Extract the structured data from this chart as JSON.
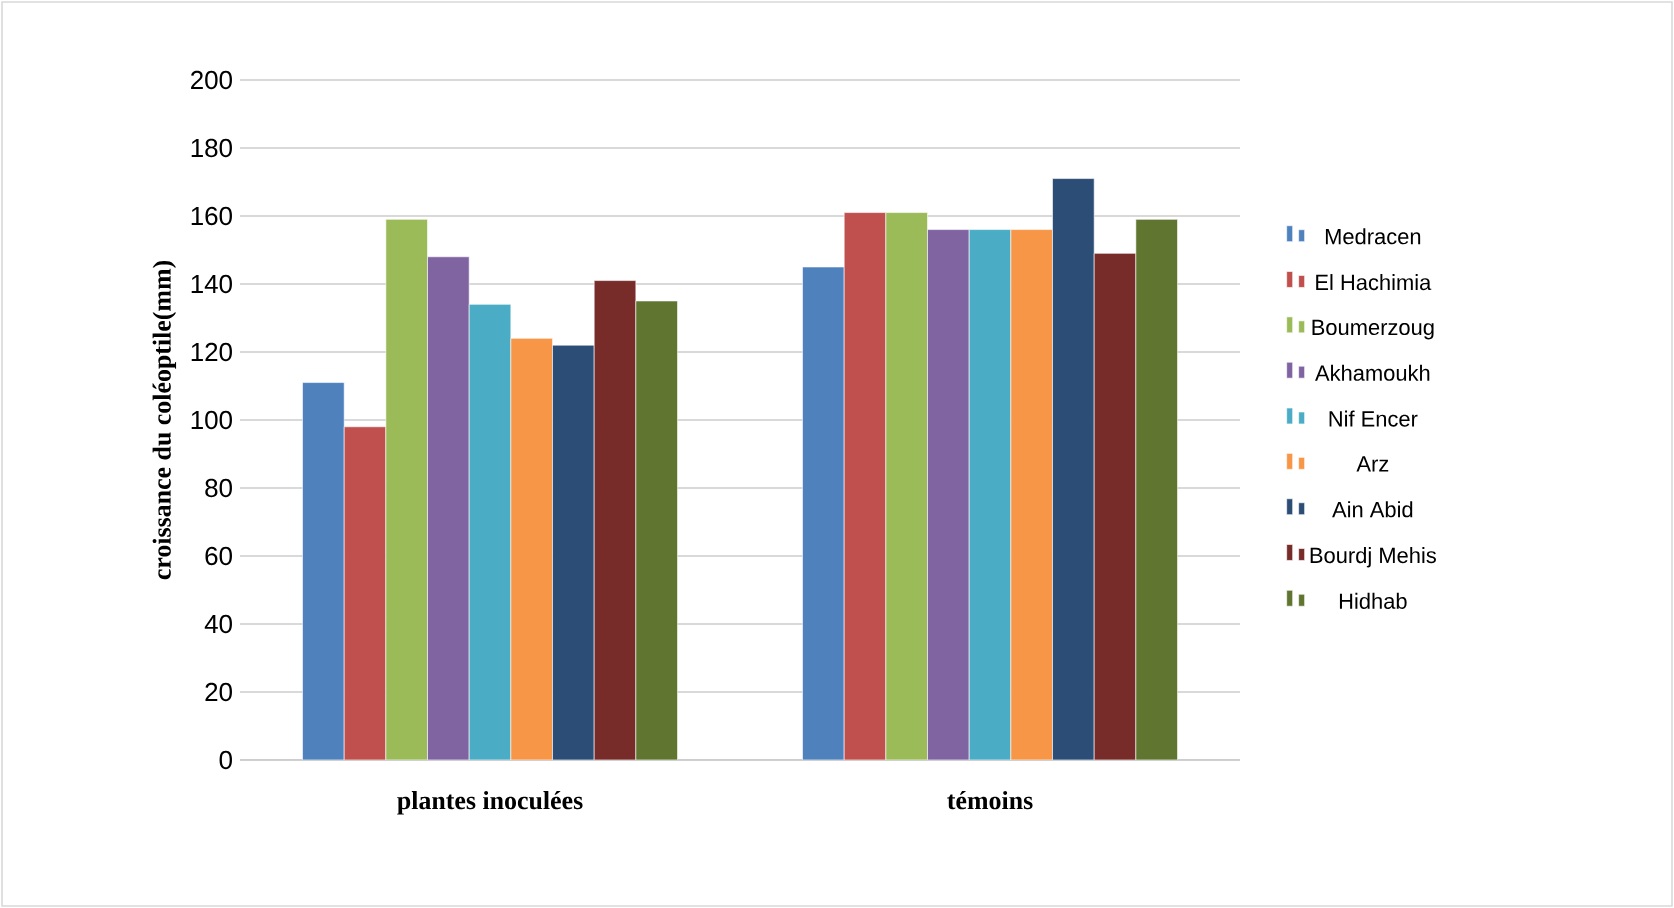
{
  "chart_data": {
    "type": "bar",
    "ylabel": "croissance du coléoptile(mm)",
    "categories": [
      "plantes inoculées",
      "témoins"
    ],
    "series": [
      {
        "name": "Medracen",
        "color": "#4f81bd",
        "values": [
          111,
          145
        ]
      },
      {
        "name": "El Hachimia",
        "color": "#c0504d",
        "values": [
          98,
          161
        ]
      },
      {
        "name": "Boumerzoug",
        "color": "#9bbb59",
        "values": [
          159,
          161
        ]
      },
      {
        "name": "Akhamoukh",
        "color": "#8064a2",
        "values": [
          148,
          156
        ]
      },
      {
        "name": "Nif Encer",
        "color": "#4bacc6",
        "values": [
          134,
          156
        ]
      },
      {
        "name": "Arz",
        "color": "#f79646",
        "values": [
          124,
          156
        ]
      },
      {
        "name": "Ain Abid",
        "color": "#2c4d75",
        "values": [
          122,
          171
        ]
      },
      {
        "name": "Bourdj Mehis",
        "color": "#772c2a",
        "values": [
          141,
          149
        ]
      },
      {
        "name": "Hidhab",
        "color": "#5f7530",
        "values": [
          135,
          159
        ]
      }
    ],
    "ylim": [
      0,
      200
    ],
    "yticks": [
      0,
      20,
      40,
      60,
      80,
      100,
      120,
      140,
      160,
      180,
      200
    ],
    "grid": "y",
    "legend": "right"
  }
}
